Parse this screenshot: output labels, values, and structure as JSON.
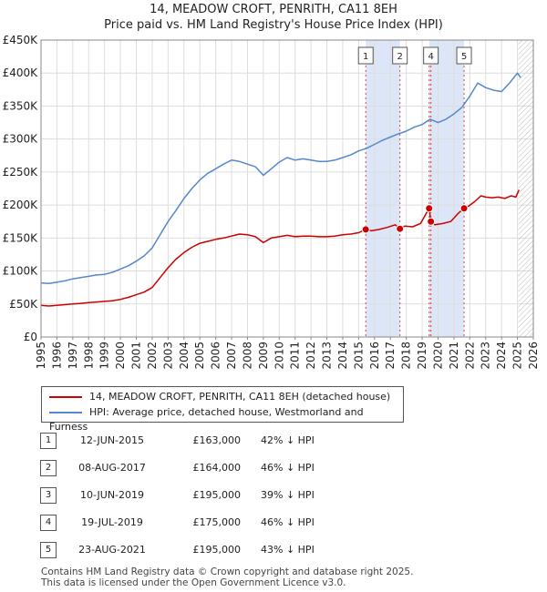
{
  "title": "14, MEADOW CROFT, PENRITH, CA11 8EH",
  "subtitle": "Price paid vs. HM Land Registry's House Price Index (HPI)",
  "legend": {
    "property": "14, MEADOW CROFT, PENRITH, CA11 8EH (detached house)",
    "hpi": "HPI: Average price, detached house, Westmorland and Furness"
  },
  "colors": {
    "property": "#cc0000",
    "hpi": "#5588cc",
    "shade": "#dde6f7",
    "grid": "#dddddd",
    "marker": "#cc0000"
  },
  "transactions": [
    {
      "num": "1",
      "date": "12-JUN-2015",
      "price": "£163,000",
      "hpi": "42% ↓ HPI"
    },
    {
      "num": "2",
      "date": "08-AUG-2017",
      "price": "£164,000",
      "hpi": "46% ↓ HPI"
    },
    {
      "num": "3",
      "date": "10-JUN-2019",
      "price": "£195,000",
      "hpi": "39% ↓ HPI"
    },
    {
      "num": "4",
      "date": "19-JUL-2019",
      "price": "£175,000",
      "hpi": "46% ↓ HPI"
    },
    {
      "num": "5",
      "date": "23-AUG-2021",
      "price": "£195,000",
      "hpi": "43% ↓ HPI"
    }
  ],
  "footer": {
    "line1": "Contains HM Land Registry data © Crown copyright and database right 2025.",
    "line2": "This data is licensed under the Open Government Licence v3.0."
  },
  "chart_data": {
    "type": "line",
    "xlim": [
      1995,
      2026
    ],
    "ylim": [
      0,
      450000
    ],
    "x_ticks": [
      1995,
      1996,
      1997,
      1998,
      1999,
      2000,
      2001,
      2002,
      2003,
      2004,
      2005,
      2006,
      2007,
      2008,
      2009,
      2010,
      2011,
      2012,
      2013,
      2014,
      2015,
      2016,
      2017,
      2018,
      2019,
      2020,
      2021,
      2022,
      2023,
      2024,
      2025,
      2026
    ],
    "y_ticks": [
      {
        "value": 0,
        "label": "£0"
      },
      {
        "value": 50000,
        "label": "£50K"
      },
      {
        "value": 100000,
        "label": "£100K"
      },
      {
        "value": 150000,
        "label": "£150K"
      },
      {
        "value": 200000,
        "label": "£200K"
      },
      {
        "value": 250000,
        "label": "£250K"
      },
      {
        "value": 300000,
        "label": "£300K"
      },
      {
        "value": 350000,
        "label": "£350K"
      },
      {
        "value": 400000,
        "label": "£400K"
      },
      {
        "value": 450000,
        "label": "£450K"
      }
    ],
    "forecast_start": 2025.05,
    "shaded_spans": [
      [
        2015.45,
        2017.6
      ],
      [
        2019.45,
        2021.64
      ]
    ],
    "sales": [
      {
        "label": "1",
        "x": 2015.45,
        "y": 163000
      },
      {
        "label": "2",
        "x": 2017.6,
        "y": 164000
      },
      {
        "label": "3",
        "x": 2019.44,
        "y": 195000
      },
      {
        "label": "4",
        "x": 2019.55,
        "y": 175000
      },
      {
        "label": "5",
        "x": 2021.64,
        "y": 195000
      }
    ],
    "series": [
      {
        "name": "14, MEADOW CROFT, PENRITH, CA11 8EH (detached house)",
        "x": [
          1995,
          1995.5,
          1996,
          1996.5,
          1997,
          1997.5,
          1998,
          1998.5,
          1999,
          1999.5,
          2000,
          2000.5,
          2001,
          2001.5,
          2002,
          2002.5,
          2003,
          2003.5,
          2004,
          2004.5,
          2005,
          2005.5,
          2006,
          2006.5,
          2007,
          2007.5,
          2008,
          2008.5,
          2009,
          2009.5,
          2010,
          2010.5,
          2011,
          2011.5,
          2012,
          2012.5,
          2013,
          2013.5,
          2014,
          2014.5,
          2015,
          2015.45,
          2015.8,
          2016.3,
          2016.8,
          2017.3,
          2017.6,
          2017.9,
          2018.4,
          2018.9,
          2019.44,
          2019.55,
          2019.8,
          2020.3,
          2020.8,
          2021.3,
          2021.64,
          2021.9,
          2022.3,
          2022.7,
          2023,
          2023.4,
          2023.8,
          2024.2,
          2024.6,
          2024.9,
          2025.1
        ],
        "y": [
          48000,
          47000,
          48000,
          49000,
          50000,
          51000,
          52000,
          53000,
          54000,
          55000,
          57000,
          60000,
          64000,
          68000,
          75000,
          90000,
          105000,
          118000,
          128000,
          136000,
          142000,
          145000,
          148000,
          150000,
          153000,
          156000,
          155000,
          152000,
          143000,
          150000,
          152000,
          154000,
          152000,
          153000,
          153000,
          152000,
          152000,
          153000,
          155000,
          156000,
          158000,
          163000,
          161000,
          163000,
          166000,
          170000,
          164000,
          168000,
          167000,
          172000,
          195000,
          175000,
          170000,
          172000,
          175000,
          188000,
          195000,
          198000,
          205000,
          214000,
          212000,
          211000,
          212000,
          210000,
          214000,
          212000,
          223000
        ]
      },
      {
        "name": "HPI: Average price, detached house, Westmorland and Furness",
        "x": [
          1995,
          1995.5,
          1996,
          1996.5,
          1997,
          1997.5,
          1998,
          1998.5,
          1999,
          1999.5,
          2000,
          2000.5,
          2001,
          2001.5,
          2002,
          2002.5,
          2003,
          2003.5,
          2004,
          2004.5,
          2005,
          2005.5,
          2006,
          2006.5,
          2007,
          2007.5,
          2008,
          2008.5,
          2009,
          2009.5,
          2010,
          2010.5,
          2011,
          2011.5,
          2012,
          2012.5,
          2013,
          2013.5,
          2014,
          2014.5,
          2015,
          2015.5,
          2016,
          2016.5,
          2017,
          2017.5,
          2018,
          2018.5,
          2019,
          2019.5,
          2020,
          2020.5,
          2021,
          2021.5,
          2022,
          2022.5,
          2023,
          2023.5,
          2024,
          2024.5,
          2025,
          2025.2
        ],
        "y": [
          82000,
          81000,
          83000,
          85000,
          88000,
          90000,
          92000,
          94000,
          95000,
          98000,
          103000,
          108000,
          115000,
          123000,
          135000,
          155000,
          175000,
          192000,
          210000,
          225000,
          238000,
          248000,
          255000,
          262000,
          268000,
          266000,
          262000,
          258000,
          245000,
          255000,
          265000,
          272000,
          268000,
          270000,
          268000,
          266000,
          266000,
          268000,
          272000,
          276000,
          282000,
          286000,
          292000,
          298000,
          303000,
          308000,
          312000,
          318000,
          322000,
          330000,
          325000,
          330000,
          338000,
          348000,
          365000,
          385000,
          378000,
          374000,
          372000,
          385000,
          400000,
          393000
        ]
      }
    ]
  }
}
